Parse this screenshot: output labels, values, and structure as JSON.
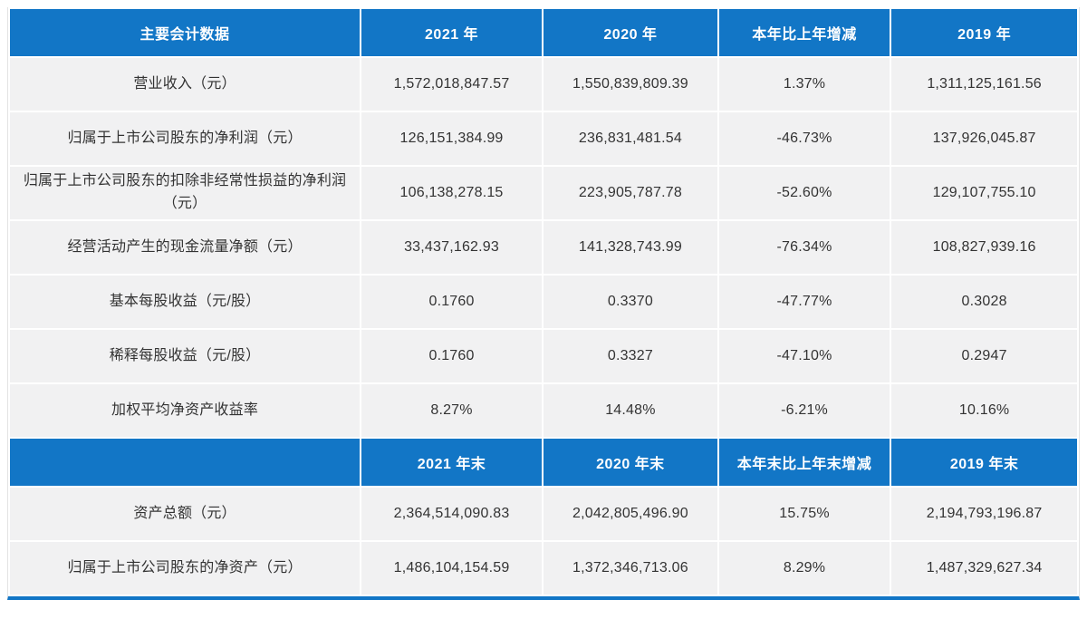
{
  "colors": {
    "header_bg": "#1276c6",
    "row_bg": "#f1f1f2",
    "text": "#333333",
    "header_text": "#ffffff",
    "page_bg": "#ffffff"
  },
  "annual_section": {
    "headers": [
      "主要会计数据",
      "2021 年",
      "2020 年",
      "本年比上年增减",
      "2019 年"
    ],
    "rows": [
      [
        "营业收入（元）",
        "1,572,018,847.57",
        "1,550,839,809.39",
        "1.37%",
        "1,311,125,161.56"
      ],
      [
        "归属于上市公司股东的净利润（元）",
        "126,151,384.99",
        "236,831,481.54",
        "-46.73%",
        "137,926,045.87"
      ],
      [
        "归属于上市公司股东的扣除非经常性损益的净利润（元）",
        "106,138,278.15",
        "223,905,787.78",
        "-52.60%",
        "129,107,755.10"
      ],
      [
        "经营活动产生的现金流量净额（元）",
        "33,437,162.93",
        "141,328,743.99",
        "-76.34%",
        "108,827,939.16"
      ],
      [
        "基本每股收益（元/股）",
        "0.1760",
        "0.3370",
        "-47.77%",
        "0.3028"
      ],
      [
        "稀释每股收益（元/股）",
        "0.1760",
        "0.3327",
        "-47.10%",
        "0.2947"
      ],
      [
        "加权平均净资产收益率",
        "8.27%",
        "14.48%",
        "-6.21%",
        "10.16%"
      ]
    ]
  },
  "period_end_section": {
    "headers": [
      "",
      "2021 年末",
      "2020 年末",
      "本年末比上年末增减",
      "2019 年末"
    ],
    "rows": [
      [
        "资产总额（元）",
        "2,364,514,090.83",
        "2,042,805,496.90",
        "15.75%",
        "2,194,793,196.87"
      ],
      [
        "归属于上市公司股东的净资产（元）",
        "1,486,104,154.59",
        "1,372,346,713.06",
        "8.29%",
        "1,487,329,627.34"
      ]
    ]
  }
}
